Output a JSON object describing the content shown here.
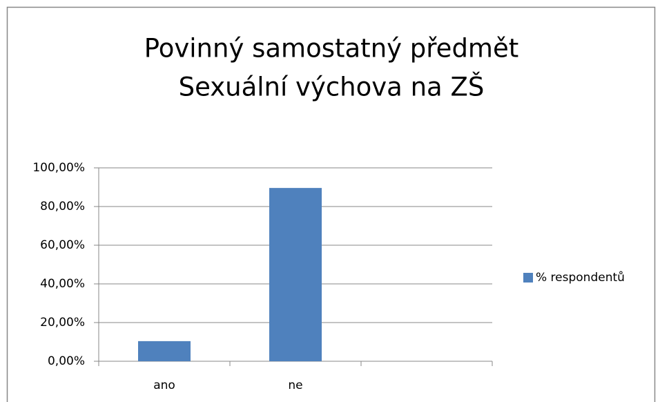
{
  "chart_data": {
    "type": "bar",
    "title": [
      "Povinný samostatný předmět",
      "Sexuální výchova na ZŠ"
    ],
    "categories": [
      "ano",
      "ne",
      null
    ],
    "series": [
      {
        "name": "% respondentů",
        "color": "#4f81bd",
        "values": [
          10.4,
          89.6,
          null
        ]
      }
    ],
    "ylim": [
      0,
      100
    ],
    "yticks": [
      {
        "value": 0,
        "label": "0,00%"
      },
      {
        "value": 20,
        "label": "20,00%"
      },
      {
        "value": 40,
        "label": "40,00%"
      },
      {
        "value": 60,
        "label": "60,00%"
      },
      {
        "value": 80,
        "label": "80,00%"
      },
      {
        "value": 100,
        "label": "100,00%"
      }
    ],
    "grid": true,
    "legend": "right"
  }
}
